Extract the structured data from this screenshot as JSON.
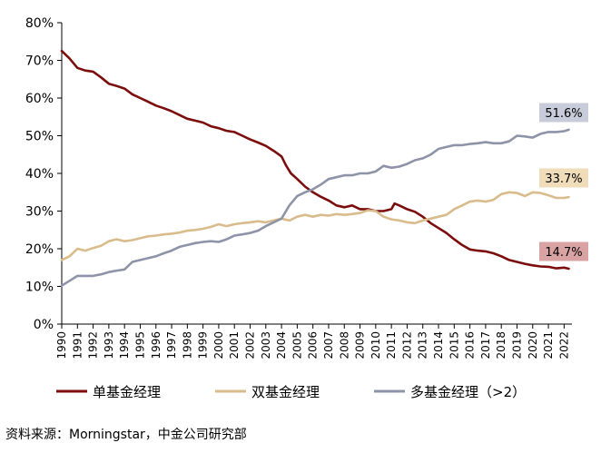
{
  "chart_data": {
    "type": "line",
    "title": "",
    "xlabel": "",
    "ylabel": "",
    "ylim": [
      0,
      80
    ],
    "y_ticks": [
      "0%",
      "10%",
      "20%",
      "30%",
      "40%",
      "50%",
      "60%",
      "70%",
      "80%"
    ],
    "x_ticks": [
      "1990",
      "1991",
      "1992",
      "1993",
      "1994",
      "1995",
      "1996",
      "1997",
      "1998",
      "1999",
      "2000",
      "2001",
      "2002",
      "2003",
      "2004",
      "2005",
      "2006",
      "2007",
      "2008",
      "2009",
      "2010",
      "2011",
      "2012",
      "2013",
      "2014",
      "2015",
      "2016",
      "2017",
      "2018",
      "2019",
      "2020",
      "2021",
      "2022"
    ],
    "grid": false,
    "legend_position": "bottom",
    "series": [
      {
        "name": "单基金经理",
        "color": "#7b0d0d",
        "end_label": "14.7%",
        "end_label_bg": "#d9a3a3",
        "points": [
          [
            1990.0,
            72.5
          ],
          [
            1990.5,
            70.5
          ],
          [
            1991.0,
            68.0
          ],
          [
            1991.5,
            67.3
          ],
          [
            1992.0,
            67.0
          ],
          [
            1992.5,
            65.5
          ],
          [
            1993.0,
            63.8
          ],
          [
            1993.5,
            63.2
          ],
          [
            1994.0,
            62.5
          ],
          [
            1994.5,
            61.0
          ],
          [
            1995.0,
            60.0
          ],
          [
            1995.5,
            59.0
          ],
          [
            1996.0,
            58.0
          ],
          [
            1996.5,
            57.3
          ],
          [
            1997.0,
            56.5
          ],
          [
            1997.5,
            55.5
          ],
          [
            1998.0,
            54.5
          ],
          [
            1998.5,
            54.0
          ],
          [
            1999.0,
            53.5
          ],
          [
            1999.5,
            52.5
          ],
          [
            2000.0,
            52.0
          ],
          [
            2000.5,
            51.3
          ],
          [
            2001.0,
            51.0
          ],
          [
            2001.5,
            50.0
          ],
          [
            2002.0,
            49.0
          ],
          [
            2002.5,
            48.2
          ],
          [
            2003.0,
            47.3
          ],
          [
            2003.5,
            46.0
          ],
          [
            2004.0,
            44.5
          ],
          [
            2004.3,
            42.0
          ],
          [
            2004.6,
            40.0
          ],
          [
            2005.0,
            38.5
          ],
          [
            2005.5,
            36.5
          ],
          [
            2006.0,
            35.0
          ],
          [
            2006.5,
            33.8
          ],
          [
            2007.0,
            32.8
          ],
          [
            2007.5,
            31.5
          ],
          [
            2008.0,
            31.0
          ],
          [
            2008.5,
            31.5
          ],
          [
            2009.0,
            30.5
          ],
          [
            2009.5,
            30.5
          ],
          [
            2010.0,
            30.0
          ],
          [
            2010.5,
            30.0
          ],
          [
            2011.0,
            30.5
          ],
          [
            2011.2,
            32.0
          ],
          [
            2011.5,
            31.5
          ],
          [
            2012.0,
            30.5
          ],
          [
            2012.5,
            29.8
          ],
          [
            2013.0,
            28.5
          ],
          [
            2013.5,
            26.8
          ],
          [
            2014.0,
            25.5
          ],
          [
            2014.5,
            24.2
          ],
          [
            2015.0,
            22.5
          ],
          [
            2015.5,
            21.0
          ],
          [
            2016.0,
            19.8
          ],
          [
            2016.5,
            19.5
          ],
          [
            2017.0,
            19.3
          ],
          [
            2017.5,
            18.8
          ],
          [
            2018.0,
            18.0
          ],
          [
            2018.5,
            17.0
          ],
          [
            2019.0,
            16.5
          ],
          [
            2019.5,
            16.0
          ],
          [
            2020.0,
            15.6
          ],
          [
            2020.5,
            15.3
          ],
          [
            2021.0,
            15.2
          ],
          [
            2021.5,
            14.8
          ],
          [
            2022.0,
            15.0
          ],
          [
            2022.3,
            14.7
          ]
        ]
      },
      {
        "name": "双基金经理",
        "color": "#d9bc8c",
        "end_label": "33.7%",
        "end_label_bg": "#efdcb8",
        "points": [
          [
            1990.0,
            17.0
          ],
          [
            1990.5,
            18.0
          ],
          [
            1991.0,
            20.0
          ],
          [
            1991.5,
            19.5
          ],
          [
            1992.0,
            20.2
          ],
          [
            1992.5,
            20.8
          ],
          [
            1993.0,
            22.0
          ],
          [
            1993.5,
            22.5
          ],
          [
            1994.0,
            22.0
          ],
          [
            1994.5,
            22.3
          ],
          [
            1995.0,
            22.8
          ],
          [
            1995.5,
            23.3
          ],
          [
            1996.0,
            23.5
          ],
          [
            1996.5,
            23.8
          ],
          [
            1997.0,
            24.0
          ],
          [
            1997.5,
            24.3
          ],
          [
            1998.0,
            24.8
          ],
          [
            1998.5,
            25.0
          ],
          [
            1999.0,
            25.3
          ],
          [
            1999.5,
            25.8
          ],
          [
            2000.0,
            26.5
          ],
          [
            2000.5,
            26.0
          ],
          [
            2001.0,
            26.5
          ],
          [
            2001.5,
            26.8
          ],
          [
            2002.0,
            27.0
          ],
          [
            2002.5,
            27.3
          ],
          [
            2003.0,
            27.0
          ],
          [
            2003.5,
            27.5
          ],
          [
            2004.0,
            28.0
          ],
          [
            2004.5,
            27.5
          ],
          [
            2005.0,
            28.5
          ],
          [
            2005.5,
            29.0
          ],
          [
            2006.0,
            28.5
          ],
          [
            2006.5,
            29.0
          ],
          [
            2007.0,
            28.8
          ],
          [
            2007.5,
            29.2
          ],
          [
            2008.0,
            29.0
          ],
          [
            2008.5,
            29.2
          ],
          [
            2009.0,
            29.5
          ],
          [
            2009.5,
            30.2
          ],
          [
            2010.0,
            30.0
          ],
          [
            2010.5,
            28.5
          ],
          [
            2011.0,
            27.8
          ],
          [
            2011.5,
            27.5
          ],
          [
            2012.0,
            27.0
          ],
          [
            2012.5,
            26.8
          ],
          [
            2013.0,
            27.5
          ],
          [
            2013.5,
            28.0
          ],
          [
            2014.0,
            28.5
          ],
          [
            2014.5,
            29.0
          ],
          [
            2015.0,
            30.5
          ],
          [
            2015.5,
            31.5
          ],
          [
            2016.0,
            32.5
          ],
          [
            2016.5,
            32.8
          ],
          [
            2017.0,
            32.5
          ],
          [
            2017.5,
            33.0
          ],
          [
            2018.0,
            34.5
          ],
          [
            2018.5,
            35.0
          ],
          [
            2019.0,
            34.8
          ],
          [
            2019.5,
            34.0
          ],
          [
            2020.0,
            35.0
          ],
          [
            2020.5,
            34.8
          ],
          [
            2021.0,
            34.2
          ],
          [
            2021.5,
            33.5
          ],
          [
            2022.0,
            33.5
          ],
          [
            2022.3,
            33.7
          ]
        ]
      },
      {
        "name": "多基金经理（>2）",
        "color": "#8e94a8",
        "end_label": "51.6%",
        "end_label_bg": "#c8ccda",
        "points": [
          [
            1990.0,
            10.2
          ],
          [
            1990.5,
            11.5
          ],
          [
            1991.0,
            12.8
          ],
          [
            1991.5,
            12.8
          ],
          [
            1992.0,
            12.8
          ],
          [
            1992.5,
            13.2
          ],
          [
            1993.0,
            13.8
          ],
          [
            1993.5,
            14.2
          ],
          [
            1994.0,
            14.5
          ],
          [
            1994.5,
            16.5
          ],
          [
            1995.0,
            17.0
          ],
          [
            1995.5,
            17.5
          ],
          [
            1996.0,
            18.0
          ],
          [
            1996.5,
            18.8
          ],
          [
            1997.0,
            19.5
          ],
          [
            1997.5,
            20.5
          ],
          [
            1998.0,
            21.0
          ],
          [
            1998.5,
            21.5
          ],
          [
            1999.0,
            21.8
          ],
          [
            1999.5,
            22.0
          ],
          [
            2000.0,
            21.8
          ],
          [
            2000.5,
            22.5
          ],
          [
            2001.0,
            23.5
          ],
          [
            2001.5,
            23.8
          ],
          [
            2002.0,
            24.2
          ],
          [
            2002.5,
            24.8
          ],
          [
            2003.0,
            26.0
          ],
          [
            2003.5,
            27.0
          ],
          [
            2004.0,
            28.0
          ],
          [
            2004.5,
            31.5
          ],
          [
            2005.0,
            34.0
          ],
          [
            2005.5,
            35.0
          ],
          [
            2006.0,
            35.8
          ],
          [
            2006.5,
            37.0
          ],
          [
            2007.0,
            38.5
          ],
          [
            2007.5,
            39.0
          ],
          [
            2008.0,
            39.5
          ],
          [
            2008.5,
            39.5
          ],
          [
            2009.0,
            40.0
          ],
          [
            2009.5,
            40.0
          ],
          [
            2010.0,
            40.5
          ],
          [
            2010.5,
            42.0
          ],
          [
            2011.0,
            41.5
          ],
          [
            2011.5,
            41.8
          ],
          [
            2012.0,
            42.5
          ],
          [
            2012.5,
            43.5
          ],
          [
            2013.0,
            44.0
          ],
          [
            2013.5,
            45.0
          ],
          [
            2014.0,
            46.5
          ],
          [
            2014.5,
            47.0
          ],
          [
            2015.0,
            47.5
          ],
          [
            2015.5,
            47.5
          ],
          [
            2016.0,
            47.8
          ],
          [
            2016.5,
            48.0
          ],
          [
            2017.0,
            48.3
          ],
          [
            2017.5,
            48.0
          ],
          [
            2018.0,
            48.0
          ],
          [
            2018.5,
            48.5
          ],
          [
            2019.0,
            50.0
          ],
          [
            2019.5,
            49.8
          ],
          [
            2020.0,
            49.5
          ],
          [
            2020.5,
            50.5
          ],
          [
            2021.0,
            51.0
          ],
          [
            2021.5,
            51.0
          ],
          [
            2022.0,
            51.2
          ],
          [
            2022.3,
            51.6
          ]
        ]
      }
    ]
  },
  "source_text": "资料来源：Morningstar，中金公司研究部"
}
